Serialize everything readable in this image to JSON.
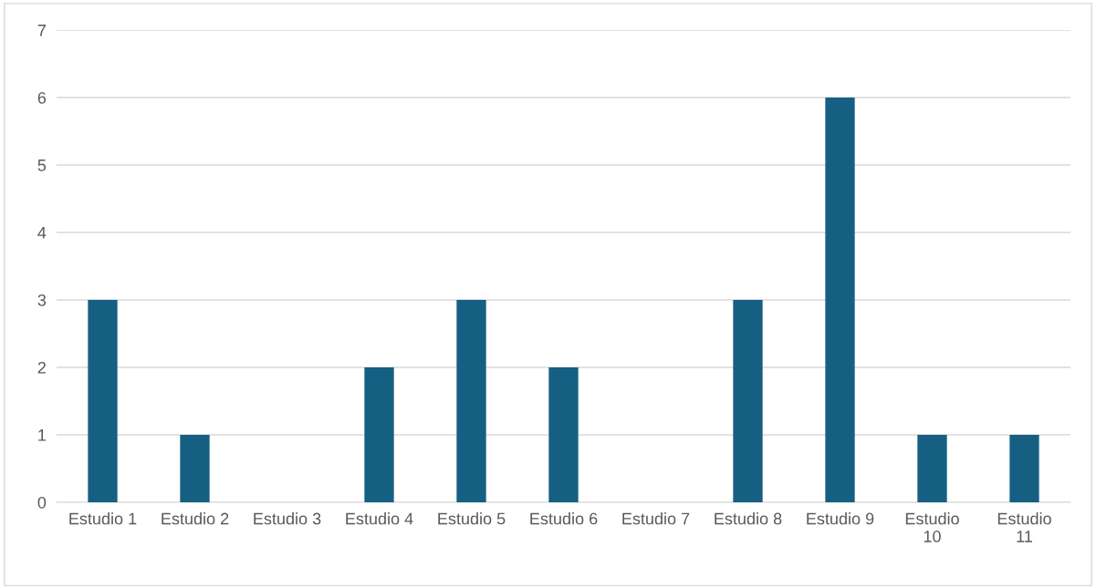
{
  "chart_data": {
    "type": "bar",
    "categories": [
      "Estudio 1",
      "Estudio 2",
      "Estudio 3",
      "Estudio 4",
      "Estudio 5",
      "Estudio 6",
      "Estudio 7",
      "Estudio 8",
      "Estudio 9",
      "Estudio 10",
      "Estudio 11"
    ],
    "values": [
      3,
      1,
      0,
      2,
      3,
      2,
      0,
      3,
      6,
      1,
      1
    ],
    "color": "#156082",
    "ylim": [
      0,
      7
    ],
    "yticks": [
      0,
      1,
      2,
      3,
      4,
      5,
      6,
      7
    ],
    "grid": "y",
    "legend": false
  }
}
